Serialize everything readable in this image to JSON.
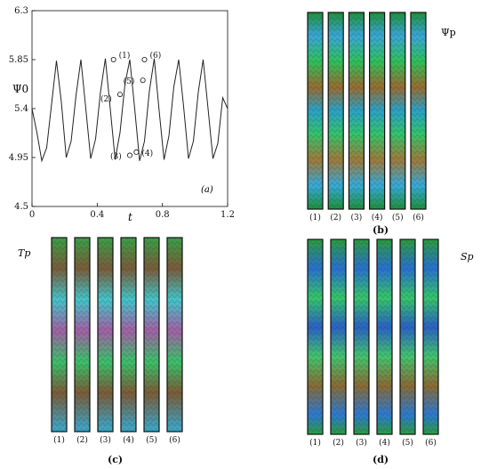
{
  "chart_data": [
    {
      "type": "line",
      "panel": "(a)",
      "xlabel": "t",
      "ylabel": "Ψ0",
      "xlim": [
        0,
        1.2
      ],
      "ylim": [
        4.5,
        6.3
      ],
      "xticks": [
        "0",
        "0.4",
        "0.8",
        "1.2"
      ],
      "yticks": [
        "4.5",
        "4.95",
        "5.4",
        "5.85",
        "6.3"
      ],
      "series": [
        {
          "x": [
            0.0,
            0.03,
            0.06,
            0.09,
            0.12,
            0.15,
            0.18,
            0.21,
            0.24,
            0.27,
            0.3,
            0.33,
            0.36,
            0.39,
            0.42,
            0.45,
            0.48,
            0.51,
            0.54,
            0.57,
            0.6,
            0.63,
            0.66,
            0.69,
            0.72,
            0.75,
            0.78,
            0.81,
            0.84,
            0.87,
            0.9,
            0.93,
            0.96,
            0.99,
            1.02,
            1.05,
            1.08,
            1.11,
            1.14,
            1.17,
            1.2
          ],
          "y": [
            5.4,
            5.18,
            4.92,
            5.04,
            5.44,
            5.84,
            5.46,
            4.95,
            5.1,
            5.52,
            5.85,
            5.4,
            4.94,
            5.12,
            5.55,
            5.86,
            5.4,
            4.93,
            5.18,
            5.62,
            5.85,
            5.4,
            4.92,
            5.1,
            5.56,
            5.86,
            5.38,
            4.93,
            5.15,
            5.6,
            5.85,
            5.42,
            4.94,
            5.1,
            5.55,
            5.85,
            5.4,
            4.94,
            5.08,
            5.5,
            5.4
          ]
        }
      ],
      "markers": [
        {
          "label": "(1)",
          "x": 0.5,
          "y": 5.85
        },
        {
          "label": "(2)",
          "x": 0.54,
          "y": 5.53
        },
        {
          "label": "(3)",
          "x": 0.6,
          "y": 4.97
        },
        {
          "label": "(4)",
          "x": 0.64,
          "y": 5.0
        },
        {
          "label": "(5)",
          "x": 0.68,
          "y": 5.66
        },
        {
          "label": "(6)",
          "x": 0.69,
          "y": 5.85
        }
      ],
      "panel_tag": "(a)"
    }
  ],
  "panels": {
    "b": {
      "tag": "(b)",
      "title": "Ψp",
      "labels": [
        "(1)",
        "(2)",
        "(3)",
        "(4)",
        "(5)",
        "(6)"
      ]
    },
    "c": {
      "tag": "(c)",
      "title": "Tp",
      "labels": [
        "(1)",
        "(2)",
        "(3)",
        "(4)",
        "(5)",
        "(6)"
      ]
    },
    "d": {
      "tag": "(d)",
      "title": "Sp",
      "labels": [
        "(1)",
        "(2)",
        "(3)",
        "(4)",
        "(5)",
        "(6)"
      ]
    }
  }
}
